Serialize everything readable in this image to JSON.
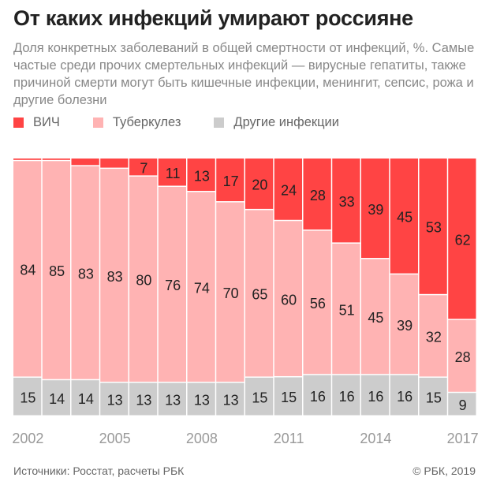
{
  "title": "От каких инфекций умирают россияне",
  "subtitle": "Доля конкретных заболеваний в общей смертности от инфекций, %. Самые частые среди прочих смертельных инфекций — вирусные гепатиты, также причиной смерти могут быть кишечные инфекции, менингит, сепсис, рожа и другие болезни",
  "source": "Источники: Росстат, расчеты РБК",
  "copyright": "© РБК, 2019",
  "colors": {
    "hiv": "#ff4444",
    "tb": "#ffb3b3",
    "other": "#cccccc"
  },
  "chart_data": {
    "type": "bar",
    "stacked": true,
    "ylim": [
      0,
      100
    ],
    "categories": [
      "2002",
      "2003",
      "2004",
      "2005",
      "2006",
      "2007",
      "2008",
      "2009",
      "2010",
      "2011",
      "2012",
      "2013",
      "2014",
      "2015",
      "2016",
      "2017"
    ],
    "tick_labels": [
      "2002",
      "2005",
      "2008",
      "2011",
      "2014",
      "2017"
    ],
    "legend_position": "top-left",
    "series": [
      {
        "name": "ВИЧ",
        "values": [
          1,
          1,
          3,
          4,
          7,
          11,
          13,
          17,
          20,
          24,
          28,
          33,
          39,
          45,
          53,
          62
        ],
        "labeled": [
          false,
          false,
          false,
          false,
          true,
          true,
          true,
          true,
          true,
          true,
          true,
          true,
          true,
          true,
          true,
          true
        ]
      },
      {
        "name": "Туберкулез",
        "values": [
          84,
          85,
          83,
          83,
          80,
          76,
          74,
          70,
          65,
          60,
          56,
          51,
          45,
          39,
          32,
          28
        ]
      },
      {
        "name": "Другие инфекции",
        "values": [
          15,
          14,
          14,
          13,
          13,
          13,
          13,
          13,
          15,
          15,
          16,
          16,
          16,
          16,
          15,
          9
        ]
      }
    ]
  }
}
